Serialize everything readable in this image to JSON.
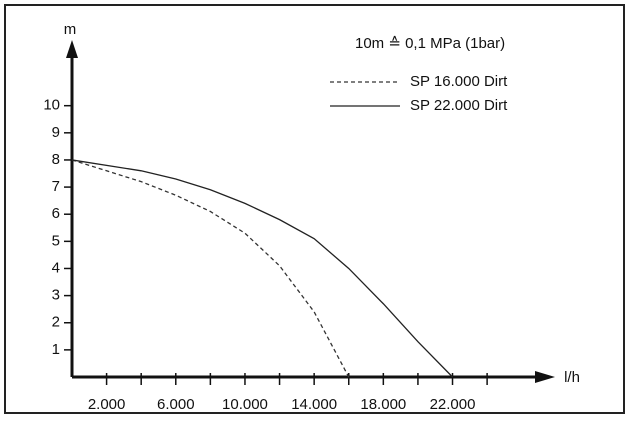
{
  "chart_data": {
    "type": "line",
    "annotation": "10m ≙ 0,1 MPa (1bar)",
    "y_label": "m",
    "x_label": "l/h",
    "xlim": [
      0,
      27000
    ],
    "ylim": [
      0,
      12.2
    ],
    "xticks": [
      {
        "value": 2000,
        "label": "2.000"
      },
      {
        "value": 6000,
        "label": "6.000"
      },
      {
        "value": 10000,
        "label": "10.000"
      },
      {
        "value": 14000,
        "label": "14.000"
      },
      {
        "value": 18000,
        "label": "18.000"
      },
      {
        "value": 22000,
        "label": "22.000"
      }
    ],
    "xminorticks": [
      4000,
      8000,
      12000,
      16000,
      20000,
      24000
    ],
    "yticks": [
      1,
      2,
      3,
      4,
      5,
      6,
      7,
      8,
      9,
      10
    ],
    "series": [
      {
        "name": "SP 16.000 Dirt",
        "color": "#333333",
        "dashed": true,
        "x": [
          0,
          2000,
          4000,
          6000,
          8000,
          10000,
          12000,
          14000,
          16000
        ],
        "values": [
          8,
          7.6,
          7.2,
          6.7,
          6.1,
          5.3,
          4.1,
          2.4,
          0
        ]
      },
      {
        "name": "SP 22.000 Dirt",
        "color": "#222222",
        "dashed": false,
        "x": [
          0,
          4000,
          6000,
          8000,
          10000,
          12000,
          14000,
          16000,
          18000,
          20000,
          22000
        ],
        "values": [
          8,
          7.6,
          7.3,
          6.9,
          6.4,
          5.8,
          5.1,
          4.0,
          2.7,
          1.3,
          0
        ]
      }
    ]
  }
}
